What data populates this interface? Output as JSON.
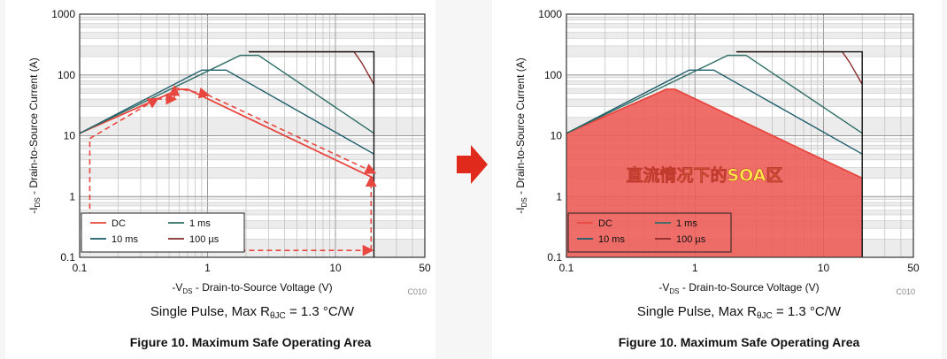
{
  "chart_data": [
    {
      "type": "line",
      "panel": "left",
      "scale": "log-log",
      "xlim": [
        0.1,
        50
      ],
      "ylim": [
        0.1,
        1000
      ],
      "xticks": [
        {
          "v": 0.1,
          "label": "0.1"
        },
        {
          "v": 1,
          "label": "1"
        },
        {
          "v": 10,
          "label": "10"
        },
        {
          "v": 50,
          "label": "50"
        }
      ],
      "yticks": [
        {
          "v": 0.1,
          "label": "0.1"
        },
        {
          "v": 1,
          "label": "1"
        },
        {
          "v": 10,
          "label": "10"
        },
        {
          "v": 100,
          "label": "100"
        },
        {
          "v": 1000,
          "label": "1000"
        }
      ],
      "xlabel_main": "-V",
      "xlabel_sub": "DS",
      "xlabel_rest": " - Drain-to-Source Voltage (V)",
      "ylabel_main": "-I",
      "ylabel_sub": "DS",
      "ylabel_rest": " - Drain-to-Source Current (A)",
      "code": "C010",
      "caption_pre": "Single Pulse, Max R",
      "caption_sub": "θJC",
      "caption_post": " = 1.3 °C/W",
      "figure_title": "Figure 10. Maximum Safe Operating Area",
      "grid": true,
      "legend_position": "bottom-left",
      "series": [
        {
          "name": "DC",
          "color": "#e8473f",
          "x": [
            0.1,
            0.6,
            0.7,
            20
          ],
          "y": [
            11,
            58,
            58,
            2.0
          ]
        },
        {
          "name": "10 ms",
          "color": "#1d5c6a",
          "x": [
            0.1,
            0.9,
            1.4,
            20
          ],
          "y": [
            11,
            120,
            120,
            5
          ]
        },
        {
          "name": "1 ms",
          "color": "#2e6e66",
          "x": [
            0.1,
            1.8,
            2.5,
            20
          ],
          "y": [
            11,
            210,
            210,
            11
          ]
        },
        {
          "name": "100 µs",
          "color": "#8a2a2a",
          "x": [
            2.1,
            14,
            16,
            20
          ],
          "y": [
            240,
            240,
            160,
            70
          ]
        },
        {
          "name": "",
          "color": "#111111",
          "x": [
            2.1,
            20,
            20
          ],
          "y": [
            240,
            240,
            0.1
          ]
        }
      ],
      "path_arrows": {
        "color": "#e8473f",
        "upper": {
          "x": [
            0.12,
            0.4,
            0.55,
            0.55,
            1.0,
            20
          ],
          "y": [
            9,
            40,
            40,
            62,
            47,
            2.5
          ]
        },
        "frame": {
          "x": [
            0.12,
            0.12,
            19,
            19
          ],
          "y": [
            8,
            0.13,
            0.13,
            2.0
          ]
        }
      }
    },
    {
      "type": "area",
      "panel": "right",
      "scale": "log-log",
      "xlim": [
        0.1,
        50
      ],
      "ylim": [
        0.1,
        1000
      ],
      "xticks": [
        {
          "v": 0.1,
          "label": "0.1"
        },
        {
          "v": 1,
          "label": "1"
        },
        {
          "v": 10,
          "label": "10"
        },
        {
          "v": 50,
          "label": "50"
        }
      ],
      "yticks": [
        {
          "v": 0.1,
          "label": "0.1"
        },
        {
          "v": 1,
          "label": "1"
        },
        {
          "v": 10,
          "label": "10"
        },
        {
          "v": 100,
          "label": "100"
        },
        {
          "v": 1000,
          "label": "1000"
        }
      ],
      "xlabel_main": "-V",
      "xlabel_sub": "DS",
      "xlabel_rest": " - Drain-to-Source Voltage (V)",
      "ylabel_main": "-I",
      "ylabel_sub": "DS",
      "ylabel_rest": " - Drain-to-Source Current (A)",
      "code": "C010",
      "caption_pre": "Single Pulse, Max R",
      "caption_sub": "θJC",
      "caption_post": " = 1.3 °C/W",
      "figure_title": "Figure 10. Maximum Safe Operating Area",
      "grid": true,
      "legend_position": "bottom-left",
      "overlay_text": "直流情况下的SOA区",
      "area_color": "#ee5a55",
      "area": {
        "x": [
          0.1,
          0.1,
          0.6,
          0.7,
          20,
          20
        ],
        "y": [
          0.1,
          11,
          58,
          58,
          2.0,
          0.1
        ]
      },
      "series": [
        {
          "name": "DC",
          "color": "#e8473f",
          "x": [
            0.1,
            0.6,
            0.7,
            20
          ],
          "y": [
            11,
            58,
            58,
            2.0
          ]
        },
        {
          "name": "10 ms",
          "color": "#1d5c6a",
          "x": [
            0.1,
            0.9,
            1.4,
            20
          ],
          "y": [
            11,
            120,
            120,
            5
          ]
        },
        {
          "name": "1 ms",
          "color": "#2e6e66",
          "x": [
            0.1,
            1.8,
            2.5,
            20
          ],
          "y": [
            11,
            210,
            210,
            11
          ]
        },
        {
          "name": "100 µs",
          "color": "#8a2a2a",
          "x": [
            2.1,
            14,
            16,
            20
          ],
          "y": [
            240,
            240,
            160,
            70
          ]
        },
        {
          "name": "",
          "color": "#111111",
          "x": [
            2.1,
            20,
            20
          ],
          "y": [
            240,
            240,
            0.1
          ]
        }
      ]
    }
  ],
  "arrow": {
    "color": "#e02a1c"
  }
}
